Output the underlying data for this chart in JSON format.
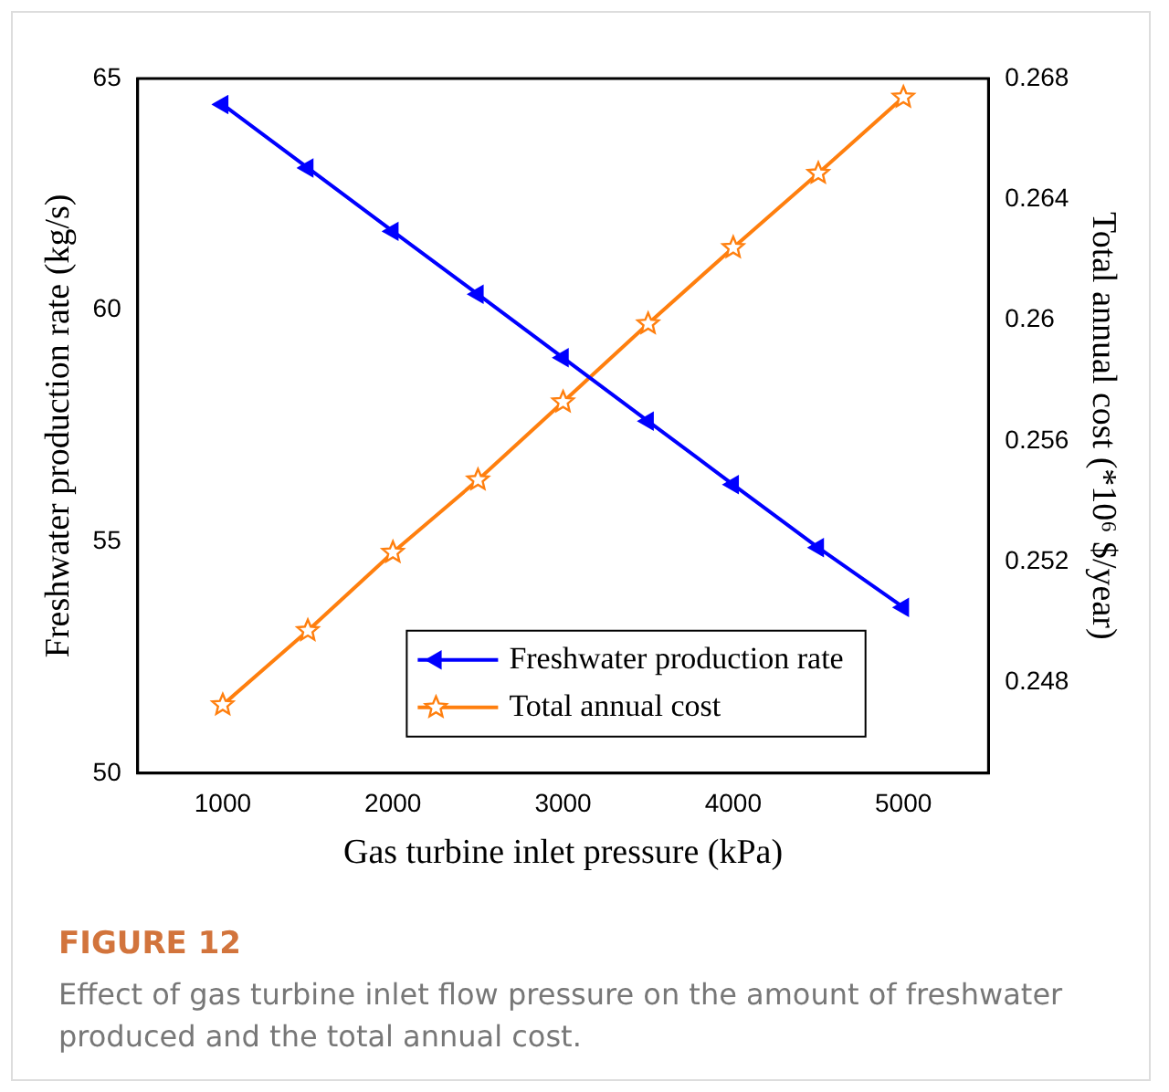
{
  "chart_data": {
    "type": "line",
    "xlabel": "Gas turbine inlet pressure (kPa)",
    "ylabel": "Freshwater production rate (kg/s)",
    "y2label": "Total annual cost (*10⁶ $/year)",
    "x": [
      1000,
      1500,
      2000,
      2500,
      3000,
      3500,
      4000,
      4500,
      5000
    ],
    "series": [
      {
        "name": "Freshwater production rate",
        "color": "#0000ff",
        "marker": "triangle",
        "values": [
          64.44,
          63.07,
          61.7,
          60.34,
          58.97,
          57.6,
          56.23,
          54.87,
          53.58
        ]
      },
      {
        "name": "Total annual cost",
        "color": "#ff7f0e",
        "marker": "star",
        "axis": "y2",
        "values": [
          0.24726,
          0.24972,
          0.25231,
          0.25471,
          0.25729,
          0.25988,
          0.2624,
          0.26486,
          0.26738
        ]
      }
    ],
    "xlim": [
      500,
      5500
    ],
    "xticks": [
      1000,
      2000,
      3000,
      4000,
      5000
    ],
    "ylim": [
      50,
      65
    ],
    "yticks": [
      50,
      55,
      60,
      65
    ],
    "y2lim": [
      0.245,
      0.268
    ],
    "y2ticks": [
      0.248,
      0.252,
      0.256,
      0.26,
      0.264,
      0.268
    ],
    "grid": false,
    "legend": "bottom",
    "annotations": [
      "FIGURE 12",
      "Effect of gas turbine inlet flow pressure on the amount of freshwater produced and the total annual cost."
    ]
  }
}
